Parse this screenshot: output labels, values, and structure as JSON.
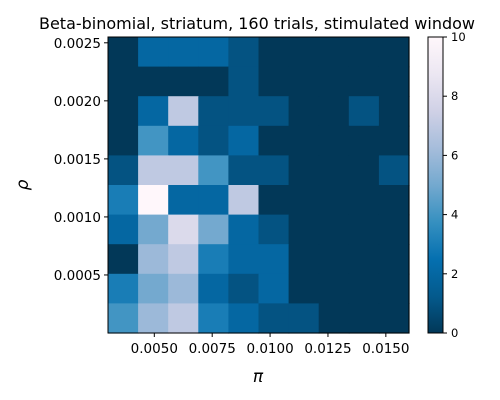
{
  "chart_data": {
    "type": "heatmap",
    "title": "Beta-binomial, striatum, 160 trials, stimulated window",
    "xlabel": "π",
    "ylabel": "ρ",
    "xlim": [
      0.003,
      0.016
    ],
    "ylim": [
      0.0,
      0.00255
    ],
    "x_tick_values": [
      0.005,
      0.0075,
      0.01,
      0.0125,
      0.015
    ],
    "x_tick_labels": [
      "0.0050",
      "0.0075",
      "0.0100",
      "0.0125",
      "0.0150"
    ],
    "y_tick_values": [
      0.0005,
      0.001,
      0.0015,
      0.002,
      0.0025
    ],
    "y_tick_labels": [
      "0.0005",
      "0.0010",
      "0.0015",
      "0.0020",
      "0.0025"
    ],
    "colorbar": {
      "colormap": "PuBu_r",
      "vmin": 0,
      "vmax": 10,
      "tick_values": [
        0,
        2,
        4,
        6,
        8,
        10
      ],
      "tick_labels": [
        "0",
        "2",
        "4",
        "6",
        "8",
        "10"
      ],
      "colors": [
        "#023858",
        "#045a8d",
        "#0570b0",
        "#3690c0",
        "#74a9cf",
        "#a6bddb",
        "#d0d1e6",
        "#ece7f2",
        "#fff7fb"
      ]
    },
    "grid": false,
    "legend": "none",
    "x_edges": [
      0.003,
      0.0043,
      0.0056,
      0.0069,
      0.0082,
      0.0095,
      0.0108,
      0.0121,
      0.0134,
      0.0147,
      0.016
    ],
    "y_edges": [
      0.0,
      0.000255,
      0.00051,
      0.000765,
      0.00102,
      0.001275,
      0.00153,
      0.001785,
      0.00204,
      0.002295,
      0.00255
    ],
    "rows_top_to_bottom": [
      [
        0,
        2,
        2,
        2,
        1,
        0,
        0,
        0,
        0,
        0
      ],
      [
        0,
        0,
        0,
        0,
        1,
        0,
        0,
        0,
        0,
        0
      ],
      [
        0,
        2,
        7,
        1,
        1,
        1,
        0,
        0,
        1,
        0
      ],
      [
        0,
        4,
        2,
        1,
        2,
        0,
        0,
        0,
        0,
        0
      ],
      [
        1,
        7,
        7,
        4,
        1,
        1,
        0,
        0,
        0,
        1
      ],
      [
        3,
        10,
        2,
        2,
        7,
        0,
        0,
        0,
        0,
        0
      ],
      [
        2,
        5,
        8,
        5,
        2,
        1,
        0,
        0,
        0,
        0
      ],
      [
        0,
        6,
        7,
        3,
        2,
        2,
        0,
        0,
        0,
        0
      ],
      [
        3,
        5,
        6,
        2,
        1,
        2,
        0,
        0,
        0,
        0
      ],
      [
        4,
        6,
        7,
        3,
        2,
        1,
        1,
        0,
        0,
        0
      ]
    ]
  }
}
